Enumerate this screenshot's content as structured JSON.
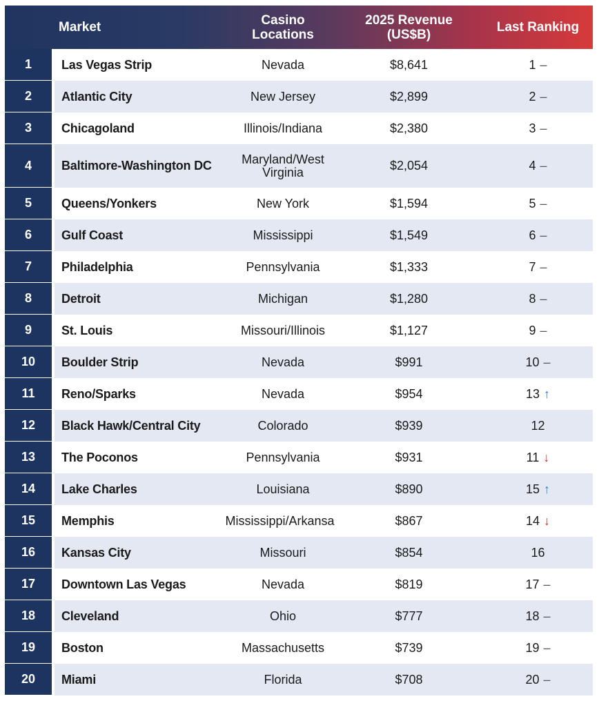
{
  "colors": {
    "header_start": "#1f3560",
    "header_end": "#d63a3a",
    "rank_bg": "#1d3461",
    "stripe": "#e4e8f3",
    "up_arrow": "#2f7fd1",
    "down_arrow": "#d0282e"
  },
  "header": {
    "rank": "",
    "market": "Market",
    "locations": "Casino Locations",
    "revenue": "2025 Revenue\n(US$B)",
    "last_ranking": "Last Ranking"
  },
  "rows": [
    {
      "rank": "1",
      "market": "Las Vegas Strip",
      "location": "Nevada",
      "revenue": "$8,641",
      "last": "1",
      "trend": "–",
      "trend_type": "same"
    },
    {
      "rank": "2",
      "market": "Atlantic City",
      "location": "New Jersey",
      "revenue": "$2,899",
      "last": "2",
      "trend": "–",
      "trend_type": "same"
    },
    {
      "rank": "3",
      "market": "Chicagoland",
      "location": "Illinois/Indiana",
      "revenue": "$2,380",
      "last": "3",
      "trend": "–",
      "trend_type": "same"
    },
    {
      "rank": "4",
      "market": "Baltimore-Washington DC",
      "location": "Maryland/West Virginia",
      "revenue": "$2,054",
      "last": "4",
      "trend": "–",
      "trend_type": "same"
    },
    {
      "rank": "5",
      "market": "Queens/Yonkers",
      "location": "New York",
      "revenue": "$1,594",
      "last": "5",
      "trend": "–",
      "trend_type": "same"
    },
    {
      "rank": "6",
      "market": "Gulf Coast",
      "location": "Mississippi",
      "revenue": "$1,549",
      "last": "6",
      "trend": "–",
      "trend_type": "same"
    },
    {
      "rank": "7",
      "market": "Philadelphia",
      "location": "Pennsylvania",
      "revenue": "$1,333",
      "last": "7",
      "trend": "–",
      "trend_type": "same"
    },
    {
      "rank": "8",
      "market": "Detroit",
      "location": "Michigan",
      "revenue": "$1,280",
      "last": "8",
      "trend": "–",
      "trend_type": "same"
    },
    {
      "rank": "9",
      "market": "St. Louis",
      "location": "Missouri/Illinois",
      "revenue": "$1,127",
      "last": "9",
      "trend": "–",
      "trend_type": "same"
    },
    {
      "rank": "10",
      "market": "Boulder Strip",
      "location": "Nevada",
      "revenue": "$991",
      "last": "10",
      "trend": "–",
      "trend_type": "same"
    },
    {
      "rank": "11",
      "market": "Reno/Sparks",
      "location": "Nevada",
      "revenue": "$954",
      "last": "13",
      "trend": "↑",
      "trend_type": "up"
    },
    {
      "rank": "12",
      "market": "Black Hawk/Central City",
      "location": "Colorado",
      "revenue": "$939",
      "last": "12",
      "trend": "",
      "trend_type": "none"
    },
    {
      "rank": "13",
      "market": "The Poconos",
      "location": "Pennsylvania",
      "revenue": "$931",
      "last": "11",
      "trend": "↓",
      "trend_type": "down"
    },
    {
      "rank": "14",
      "market": "Lake Charles",
      "location": "Louisiana",
      "revenue": "$890",
      "last": "15",
      "trend": "↑",
      "trend_type": "up"
    },
    {
      "rank": "15",
      "market": "Memphis",
      "location": "Mississippi/Arkansas",
      "revenue": "$867",
      "last": "14",
      "trend": "↓",
      "trend_type": "down"
    },
    {
      "rank": "16",
      "market": "Kansas City",
      "location": "Missouri",
      "revenue": "$854",
      "last": "16",
      "trend": "",
      "trend_type": "none"
    },
    {
      "rank": "17",
      "market": "Downtown Las Vegas",
      "location": "Nevada",
      "revenue": "$819",
      "last": "17",
      "trend": "–",
      "trend_type": "same"
    },
    {
      "rank": "18",
      "market": "Cleveland",
      "location": "Ohio",
      "revenue": "$777",
      "last": "18",
      "trend": "–",
      "trend_type": "same"
    },
    {
      "rank": "19",
      "market": "Boston",
      "location": "Massachusetts",
      "revenue": "$739",
      "last": "19",
      "trend": "–",
      "trend_type": "same"
    },
    {
      "rank": "20",
      "market": "Miami",
      "location": "Florida",
      "revenue": "$708",
      "last": "20",
      "trend": "–",
      "trend_type": "same"
    }
  ]
}
